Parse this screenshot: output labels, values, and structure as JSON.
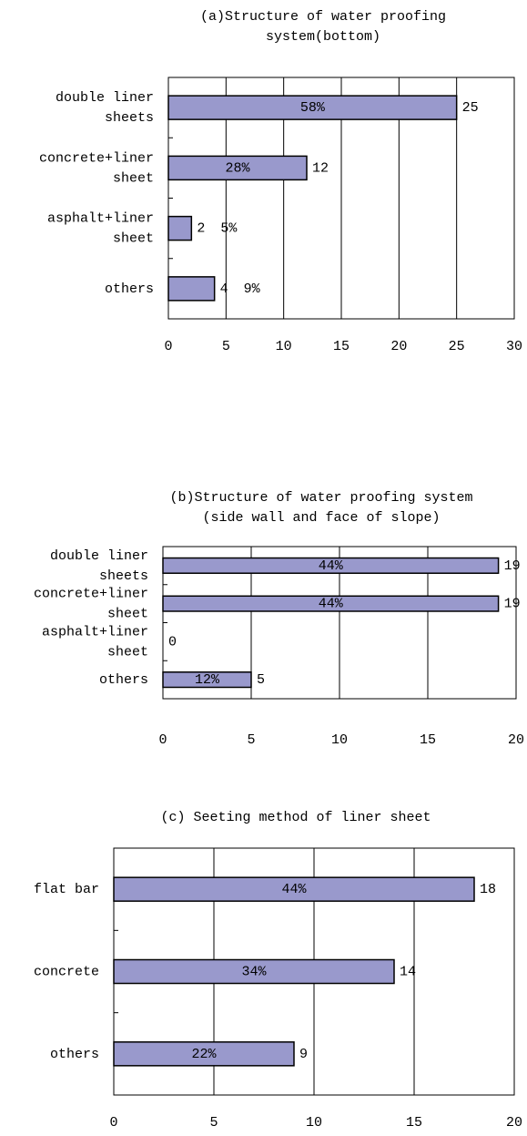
{
  "chart_data": [
    {
      "type": "bar",
      "orientation": "horizontal",
      "title": "(a)Structure of water proofing\nsystem(bottom)",
      "categories": [
        "double liner\nsheets",
        "concrete+liner\nsheet",
        "asphalt+liner\nsheet",
        "others"
      ],
      "values": [
        25,
        12,
        2,
        4
      ],
      "percent_labels": [
        "58%",
        "28%",
        "5%",
        "9%"
      ],
      "color": "#9999cc",
      "xlim": [
        0,
        30
      ],
      "xticks": [
        0,
        5,
        10,
        15,
        20,
        25,
        30
      ],
      "grid": true
    },
    {
      "type": "bar",
      "orientation": "horizontal",
      "title": "(b)Structure of water proofing system\n(side wall and face of slope)",
      "categories": [
        "double liner\nsheets",
        "concrete+liner\nsheet",
        "asphalt+liner\nsheet",
        "others"
      ],
      "values": [
        19,
        19,
        0,
        5
      ],
      "percent_labels": [
        "44%",
        "44%",
        null,
        "12%"
      ],
      "color": "#9999cc",
      "xlim": [
        0,
        20
      ],
      "xticks": [
        0,
        5,
        10,
        15,
        20
      ],
      "grid": true
    },
    {
      "type": "bar",
      "orientation": "horizontal",
      "title": "(c) Seeting method of liner sheet",
      "categories": [
        "flat bar",
        "concrete",
        "others"
      ],
      "values": [
        18,
        14,
        9
      ],
      "percent_labels": [
        "44%",
        "34%",
        "22%"
      ],
      "color": "#9999cc",
      "xlim": [
        0,
        20
      ],
      "xticks": [
        0,
        5,
        10,
        15,
        20
      ],
      "grid": true
    }
  ]
}
